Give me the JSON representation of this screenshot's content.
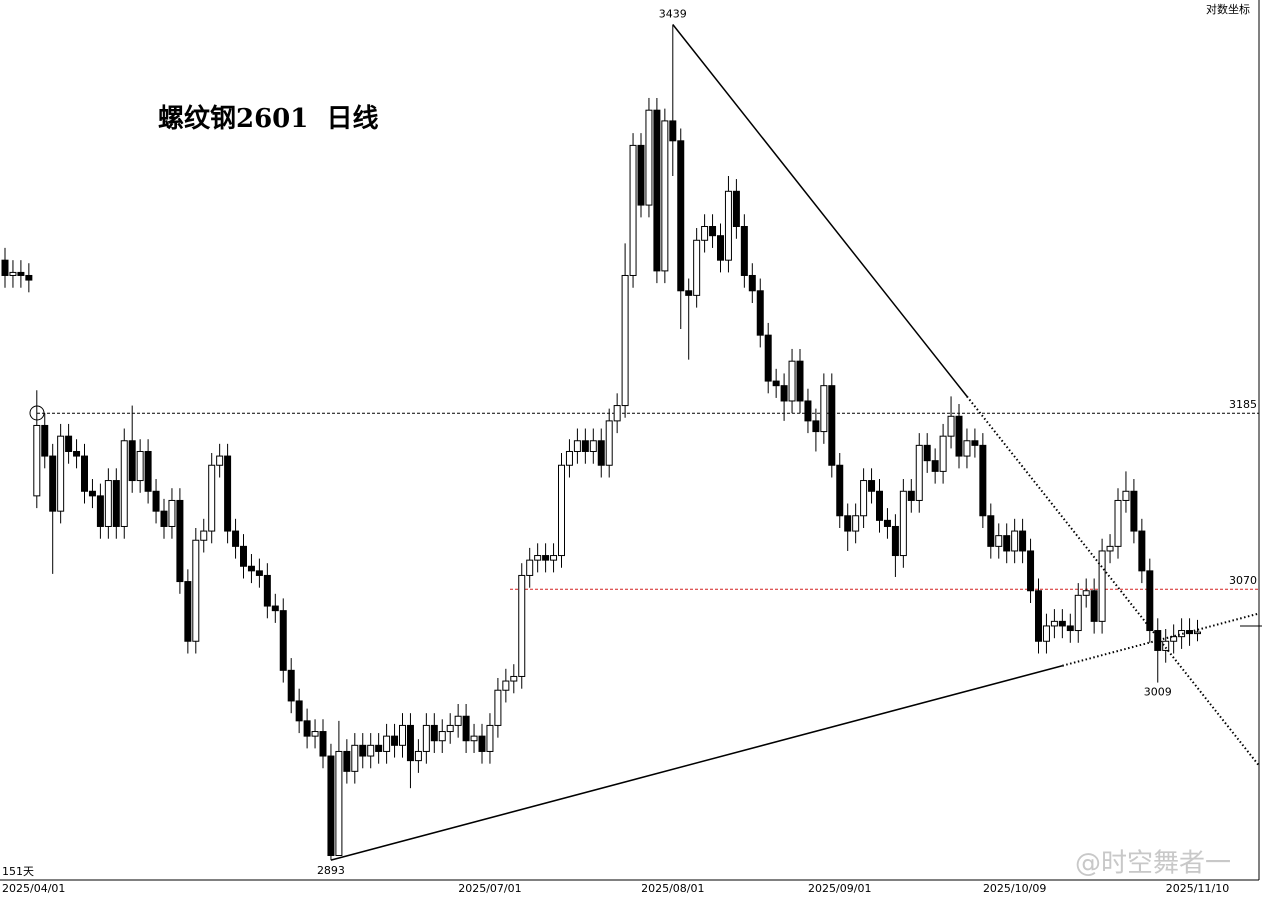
{
  "chart_data": {
    "type": "candlestick",
    "title": "螺纹钢2601  日线",
    "badge": "对数坐标",
    "footnote": "151天",
    "watermark": "@时空舞者一",
    "up_color": "#ffffff",
    "down_color": "#000000",
    "ylim": [
      2880,
      3455
    ],
    "categories": [
      "2025/04/01",
      null,
      null,
      null,
      null,
      null,
      null,
      null,
      null,
      null,
      null,
      null,
      null,
      null,
      null,
      null,
      null,
      null,
      null,
      null,
      null,
      null,
      null,
      null,
      null,
      null,
      null,
      null,
      null,
      null,
      null,
      null,
      null,
      null,
      null,
      null,
      null,
      null,
      null,
      null,
      null,
      null,
      null,
      null,
      null,
      null,
      null,
      null,
      null,
      null,
      null,
      null,
      null,
      null,
      null,
      null,
      null,
      null,
      null,
      null,
      null,
      "2025/07/01",
      null,
      null,
      null,
      null,
      null,
      null,
      null,
      null,
      null,
      null,
      null,
      null,
      null,
      null,
      null,
      null,
      null,
      null,
      null,
      null,
      null,
      null,
      "2025/08/01",
      null,
      null,
      null,
      null,
      null,
      null,
      null,
      null,
      null,
      null,
      null,
      null,
      null,
      null,
      null,
      null,
      null,
      null,
      null,
      null,
      "2025/09/01",
      null,
      null,
      null,
      null,
      null,
      null,
      null,
      null,
      null,
      null,
      null,
      null,
      null,
      null,
      null,
      null,
      null,
      null,
      null,
      null,
      null,
      "2025/10/09",
      null,
      null,
      null,
      null,
      null,
      null,
      null,
      null,
      null,
      null,
      null,
      null,
      null,
      null,
      null,
      null,
      null,
      null,
      null,
      null,
      null,
      null,
      "2025/11/10"
    ],
    "open": [
      3285,
      3275,
      3277,
      3275,
      3131,
      3177,
      3157,
      3121,
      3170,
      3160,
      3157,
      3134,
      3131,
      3111,
      3141,
      3111,
      3167,
      3141,
      3160,
      3134,
      3121,
      3111,
      3128,
      3075,
      3036,
      3102,
      3108,
      3151,
      3157,
      3108,
      3098,
      3085,
      3082,
      3079,
      3059,
      3056,
      3017,
      2997,
      2984,
      2974,
      2977,
      2961,
      2896,
      2964,
      2951,
      2968,
      2961,
      2968,
      2964,
      2974,
      2968,
      2981,
      2958,
      2964,
      2981,
      2971,
      2977,
      2981,
      2987,
      2971,
      2974,
      2964,
      2981,
      3004,
      3010,
      3013,
      3079,
      3089,
      3092,
      3089,
      3092,
      3151,
      3160,
      3167,
      3160,
      3167,
      3151,
      3180,
      3190,
      3275,
      3360,
      3321,
      3383,
      3278,
      3376,
      3363,
      3265,
      3262,
      3298,
      3307,
      3301,
      3285,
      3330,
      3307,
      3275,
      3265,
      3236,
      3206,
      3203,
      3193,
      3219,
      3193,
      3180,
      3173,
      3203,
      3151,
      3118,
      3108,
      3118,
      3141,
      3134,
      3115,
      3111,
      3092,
      3134,
      3128,
      3164,
      3154,
      3147,
      3170,
      3183,
      3157,
      3167,
      3164,
      3118,
      3098,
      3105,
      3095,
      3108,
      3095,
      3069,
      3036,
      3046,
      3049,
      3046,
      3043,
      3066,
      3069,
      3049,
      3095,
      3098,
      3128,
      3134,
      3108,
      3082,
      3043,
      3030,
      3036,
      3039,
      3043,
      3041
    ],
    "high": [
      3293,
      3285,
      3285,
      3283,
      3200,
      3185,
      3165,
      3178,
      3178,
      3168,
      3165,
      3142,
      3139,
      3149,
      3149,
      3175,
      3190,
      3168,
      3168,
      3142,
      3129,
      3136,
      3136,
      3083,
      3110,
      3116,
      3159,
      3165,
      3165,
      3116,
      3106,
      3093,
      3090,
      3087,
      3067,
      3064,
      3025,
      3005,
      2992,
      2985,
      2985,
      2969,
      2984,
      2972,
      2976,
      2976,
      2976,
      2976,
      2982,
      2982,
      2989,
      2989,
      2972,
      2989,
      2989,
      2985,
      2989,
      2995,
      2995,
      2982,
      2982,
      2989,
      3012,
      3018,
      3021,
      3087,
      3097,
      3100,
      3100,
      3100,
      3159,
      3168,
      3175,
      3175,
      3175,
      3175,
      3188,
      3198,
      3296,
      3368,
      3368,
      3391,
      3391,
      3384,
      3439,
      3371,
      3273,
      3306,
      3315,
      3315,
      3309,
      3340,
      3338,
      3315,
      3283,
      3273,
      3244,
      3214,
      3211,
      3227,
      3227,
      3201,
      3188,
      3211,
      3211,
      3159,
      3126,
      3126,
      3149,
      3149,
      3142,
      3123,
      3119,
      3142,
      3142,
      3172,
      3172,
      3162,
      3178,
      3196,
      3191,
      3175,
      3175,
      3172,
      3126,
      3113,
      3113,
      3116,
      3116,
      3103,
      3077,
      3054,
      3057,
      3057,
      3054,
      3074,
      3077,
      3077,
      3103,
      3106,
      3136,
      3147,
      3142,
      3116,
      3090,
      3051,
      3044,
      3047,
      3051,
      3051,
      3050
    ],
    "low": [
      3267,
      3267,
      3267,
      3264,
      3123,
      3149,
      3080,
      3113,
      3152,
      3149,
      3126,
      3123,
      3103,
      3103,
      3103,
      3103,
      3133,
      3133,
      3126,
      3113,
      3103,
      3103,
      3067,
      3028,
      3028,
      3094,
      3100,
      3143,
      3100,
      3090,
      3077,
      3074,
      3071,
      3051,
      3048,
      3009,
      2989,
      2976,
      2966,
      2966,
      2953,
      2893,
      2898,
      2943,
      2943,
      2953,
      2953,
      2956,
      2956,
      2960,
      2960,
      2940,
      2950,
      2956,
      2963,
      2963,
      2969,
      2973,
      2963,
      2963,
      2956,
      2956,
      2973,
      2996,
      3002,
      3005,
      3071,
      3081,
      3081,
      3081,
      3084,
      3143,
      3152,
      3152,
      3152,
      3143,
      3143,
      3172,
      3182,
      3267,
      3313,
      3313,
      3270,
      3270,
      3340,
      3240,
      3220,
      3254,
      3290,
      3293,
      3277,
      3277,
      3299,
      3267,
      3257,
      3228,
      3198,
      3195,
      3180,
      3185,
      3185,
      3172,
      3160,
      3165,
      3143,
      3110,
      3095,
      3100,
      3110,
      3126,
      3107,
      3103,
      3078,
      3084,
      3120,
      3120,
      3146,
      3139,
      3139,
      3162,
      3149,
      3149,
      3156,
      3110,
      3090,
      3090,
      3087,
      3087,
      3087,
      3061,
      3028,
      3028,
      3038,
      3038,
      3035,
      3035,
      3058,
      3041,
      3041,
      3087,
      3090,
      3120,
      3100,
      3074,
      3035,
      3009,
      3022,
      3028,
      3031,
      3033,
      3036
    ],
    "close": [
      3275,
      3277,
      3275,
      3272,
      3177,
      3157,
      3121,
      3170,
      3160,
      3157,
      3134,
      3131,
      3111,
      3141,
      3111,
      3167,
      3141,
      3160,
      3134,
      3121,
      3111,
      3128,
      3075,
      3036,
      3102,
      3108,
      3151,
      3157,
      3108,
      3098,
      3085,
      3082,
      3079,
      3059,
      3056,
      3017,
      2997,
      2984,
      2974,
      2977,
      2961,
      2896,
      2964,
      2951,
      2968,
      2961,
      2968,
      2964,
      2974,
      2968,
      2981,
      2958,
      2964,
      2981,
      2971,
      2977,
      2981,
      2987,
      2971,
      2974,
      2964,
      2981,
      3004,
      3010,
      3013,
      3079,
      3089,
      3092,
      3089,
      3092,
      3151,
      3160,
      3167,
      3160,
      3167,
      3151,
      3180,
      3190,
      3275,
      3360,
      3321,
      3383,
      3278,
      3376,
      3363,
      3265,
      3262,
      3298,
      3307,
      3301,
      3285,
      3330,
      3307,
      3275,
      3265,
      3236,
      3206,
      3203,
      3193,
      3219,
      3193,
      3180,
      3173,
      3203,
      3151,
      3118,
      3108,
      3118,
      3141,
      3134,
      3115,
      3111,
      3092,
      3134,
      3128,
      3164,
      3154,
      3147,
      3170,
      3183,
      3157,
      3167,
      3164,
      3118,
      3098,
      3105,
      3095,
      3108,
      3095,
      3069,
      3036,
      3046,
      3049,
      3046,
      3043,
      3066,
      3069,
      3049,
      3095,
      3098,
      3128,
      3134,
      3108,
      3082,
      3043,
      3030,
      3036,
      3039,
      3043,
      3041,
      3042
    ],
    "hlines": [
      {
        "value": 3185,
        "color": "#000000"
      },
      {
        "value": 3070,
        "color": "#d42020"
      }
    ],
    "trendlines": [
      {
        "points": [
          [
            84,
            3439
          ],
          [
            121,
            3196
          ]
        ]
      },
      {
        "points": [
          [
            41,
            2893
          ],
          [
            133,
            3020
          ]
        ]
      }
    ]
  }
}
